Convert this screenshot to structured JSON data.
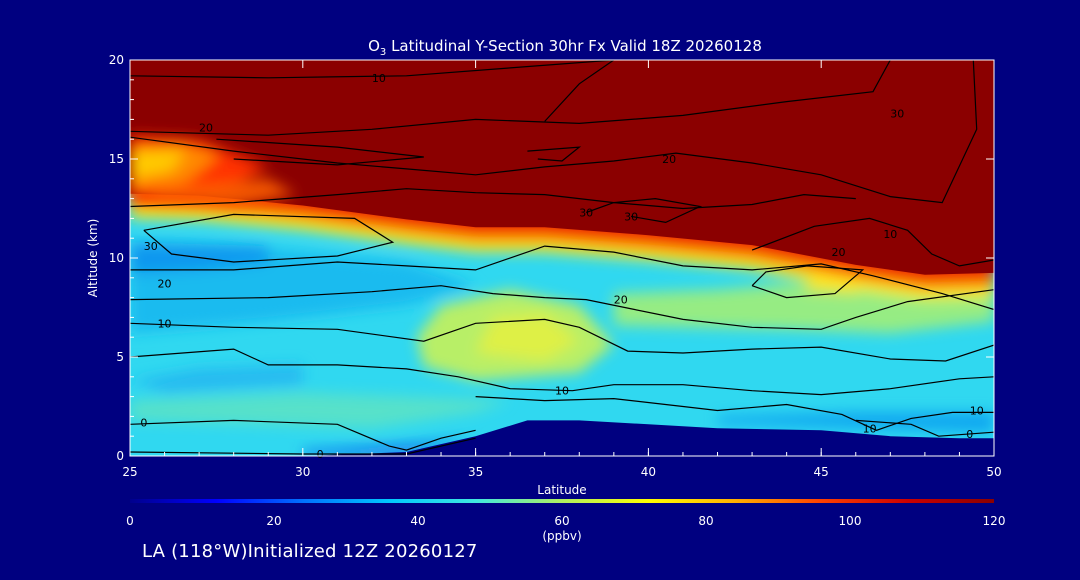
{
  "chart_data": {
    "type": "heatmap",
    "title": "O₃ Latitudinal Y-Section 30hr  Fx Valid 18Z 20260128",
    "xlabel": "Latitude",
    "ylabel": "Altitude (km)",
    "xlim": [
      25,
      50
    ],
    "ylim": [
      0,
      20
    ],
    "x_ticks": [
      "25",
      "30",
      "35",
      "40",
      "45",
      "50"
    ],
    "y_ticks": [
      "0",
      "5",
      "10",
      "15",
      "20"
    ],
    "colorbar": {
      "label": "(ppbv)",
      "range": [
        0,
        120
      ],
      "ticks": [
        "0",
        "20",
        "40",
        "60",
        "80",
        "100",
        "120"
      ],
      "colors": [
        "#00008c",
        "#0000ff",
        "#0070ff",
        "#00c8ff",
        "#40e8e0",
        "#b0f060",
        "#ffff00",
        "#ffb000",
        "#ff4000",
        "#cc0000",
        "#8b0000"
      ]
    },
    "terrain_profile": {
      "lat": [
        25,
        30,
        33,
        35,
        36.5,
        38,
        40,
        42,
        45,
        47,
        49,
        50
      ],
      "alt_km": [
        0,
        0,
        0.2,
        1.0,
        1.8,
        1.8,
        1.6,
        1.4,
        1.3,
        1.0,
        0.9,
        0.9
      ]
    },
    "tropopause_boundary": {
      "lat": [
        25,
        27,
        30,
        33,
        35,
        37,
        40,
        43,
        46,
        48,
        50
      ],
      "alt_km": [
        12.9,
        12.8,
        12.3,
        11.6,
        11.2,
        11.2,
        10.8,
        10.3,
        9.3,
        8.8,
        8.9
      ]
    },
    "contour_labels": [
      {
        "text": "10",
        "lat": 32.2,
        "alt_km": 19.1
      },
      {
        "text": "20",
        "lat": 27.2,
        "alt_km": 16.6
      },
      {
        "text": "20",
        "lat": 40.6,
        "alt_km": 15.0
      },
      {
        "text": "30",
        "lat": 47.2,
        "alt_km": 17.3
      },
      {
        "text": "30",
        "lat": 38.2,
        "alt_km": 12.3
      },
      {
        "text": "30",
        "lat": 39.5,
        "alt_km": 12.1
      },
      {
        "text": "30",
        "lat": 25.6,
        "alt_km": 10.6
      },
      {
        "text": "20",
        "lat": 26.0,
        "alt_km": 8.7
      },
      {
        "text": "10",
        "lat": 26.0,
        "alt_km": 6.7
      },
      {
        "text": "20",
        "lat": 39.2,
        "alt_km": 7.9
      },
      {
        "text": "20",
        "lat": 45.5,
        "alt_km": 10.3
      },
      {
        "text": "10",
        "lat": 47.0,
        "alt_km": 11.2
      },
      {
        "text": "10",
        "lat": 37.5,
        "alt_km": 3.3
      },
      {
        "text": "10",
        "lat": 49.5,
        "alt_km": 2.3
      },
      {
        "text": "10",
        "lat": 46.4,
        "alt_km": 1.4
      },
      {
        "text": "0",
        "lat": 25.4,
        "alt_km": 1.7
      },
      {
        "text": "0",
        "lat": 30.5,
        "alt_km": 0.1
      },
      {
        "text": "0",
        "lat": 49.3,
        "alt_km": 1.1
      }
    ]
  },
  "footer": "LA (118°W)Initialized 12Z 20260127"
}
